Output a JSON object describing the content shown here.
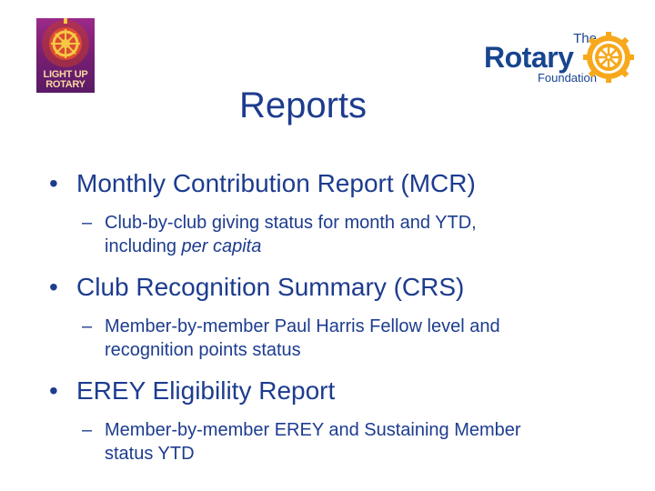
{
  "logos": {
    "light_up_rotary": {
      "line1": "LIGHT UP",
      "line2": "ROTARY"
    },
    "rotary_foundation": {
      "the": "The",
      "rotary": "Rotary",
      "foundation": "Foundation"
    }
  },
  "title": "Reports",
  "bullets": [
    {
      "text": "Monthly Contribution Report (MCR)",
      "sub": {
        "line1": "Club-by-club giving status for month and YTD,",
        "line2_prefix": "including ",
        "line2_italic": "per capita"
      }
    },
    {
      "text": "Club Recognition Summary (CRS)",
      "sub": {
        "line1": "Member-by-member Paul Harris Fellow level and",
        "line2": "recognition points status"
      }
    },
    {
      "text": "EREY Eligibility Report",
      "sub": {
        "line1": "Member-by-member EREY and Sustaining Member",
        "line2": "status YTD"
      }
    }
  ],
  "glyphs": {
    "bullet": "•",
    "dash": "–"
  },
  "colors": {
    "text": "#1d3c8f",
    "rotary_blue": "#17458f",
    "rotary_gold": "#f7a81b",
    "lur_purple": "#7a1f74"
  }
}
